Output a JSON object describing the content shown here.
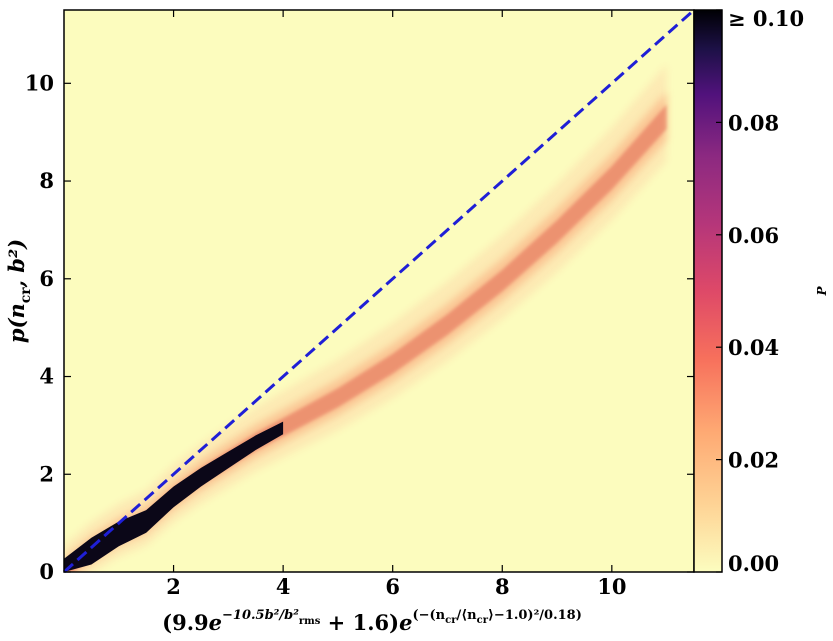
{
  "chart_data": {
    "type": "heatmap",
    "xlabel_parts": {
      "pre": "(9.9",
      "e1": "e",
      "sup1": "−10.5b²/b²",
      "sup1_sub": "rms",
      "mid": " + 1.6)",
      "e2": "e",
      "sup2": "(−(n",
      "sup2_sub1": "cr",
      "sup2_b": "/⟨n",
      "sup2_sub2": "cr",
      "sup2_c": "⟩−1.0)²/0.18)"
    },
    "ylabel_parts": {
      "pre": "p(n",
      "sub": "cr",
      "post": ", b²)"
    },
    "xlim": [
      0,
      11.5
    ],
    "ylim": [
      0,
      11.5
    ],
    "x_ticks": [
      "2",
      "4",
      "6",
      "8",
      "10"
    ],
    "x_tick_values": [
      2,
      4,
      6,
      8,
      10
    ],
    "y_ticks": [
      "0",
      "2",
      "4",
      "6",
      "8",
      "10"
    ],
    "y_tick_values": [
      0,
      2,
      4,
      6,
      8,
      10
    ],
    "reference_line": {
      "style": "dashed",
      "color": "#1f1fd6",
      "x": [
        0,
        11.5
      ],
      "y": [
        0,
        11.5
      ]
    },
    "density_ridge": {
      "x": [
        0,
        0.5,
        1.0,
        1.5,
        2.0,
        2.5,
        3.0,
        3.5,
        4.0,
        5.0,
        6.0,
        7.0,
        8.0,
        9.0,
        10.0,
        11.0
      ],
      "y": [
        0,
        0.45,
        0.8,
        1.05,
        1.55,
        1.95,
        2.3,
        2.65,
        2.95,
        3.55,
        4.25,
        5.05,
        5.95,
        6.95,
        8.05,
        9.3
      ]
    },
    "colorbar": {
      "label": "P",
      "ticks": [
        "0.00",
        "0.02",
        "0.04",
        "0.06",
        "0.08",
        "≥ 0.10"
      ],
      "tick_values": [
        0.0,
        0.02,
        0.04,
        0.06,
        0.08,
        0.1
      ],
      "range": [
        0.0,
        0.1
      ],
      "colormap": "magma_r"
    },
    "background_color": "#fcfcbe"
  }
}
